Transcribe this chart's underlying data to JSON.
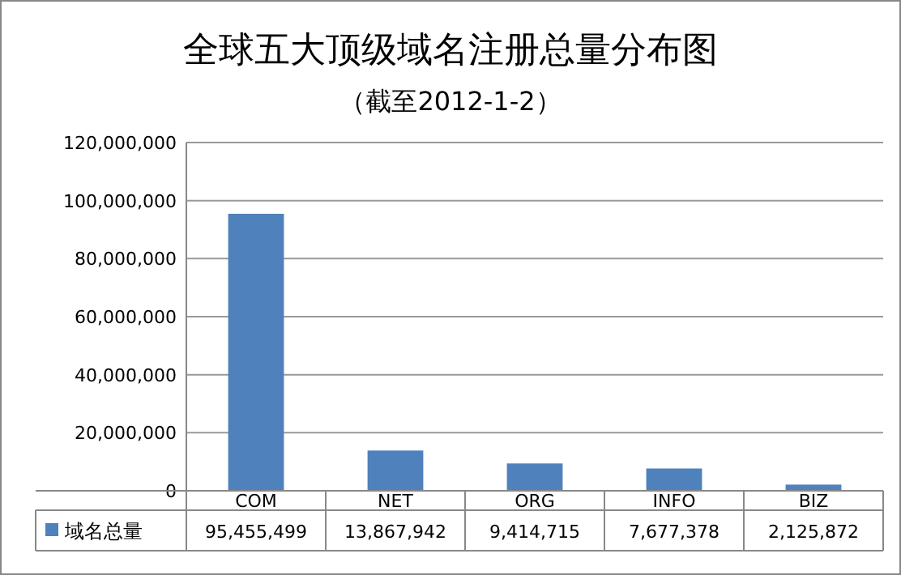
{
  "chart_data": {
    "type": "bar",
    "title": "全球五大顶级域名注册总量分布图",
    "subtitle": "（截至2012-1-2）",
    "categories": [
      "COM",
      "NET",
      "ORG",
      "INFO",
      "BIZ"
    ],
    "series": [
      {
        "name": "域名总量",
        "color": "#4f81bd",
        "values": [
          95455499,
          13867942,
          9414715,
          7677378,
          2125872
        ],
        "value_labels": [
          "95,455,499",
          "13,867,942",
          "9,414,715",
          "7,677,378",
          "2,125,872"
        ]
      }
    ],
    "ylim": [
      0,
      120000000
    ],
    "yticks": [
      {
        "value": 0,
        "label": "0"
      },
      {
        "value": 20000000,
        "label": "20,000,000"
      },
      {
        "value": 40000000,
        "label": "40,000,000"
      },
      {
        "value": 60000000,
        "label": "60,000,000"
      },
      {
        "value": 80000000,
        "label": "80,000,000"
      },
      {
        "value": 100000000,
        "label": "100,000,000"
      },
      {
        "value": 120000000,
        "label": "120,000,000"
      }
    ],
    "grid": "y",
    "legend": "bottom"
  }
}
